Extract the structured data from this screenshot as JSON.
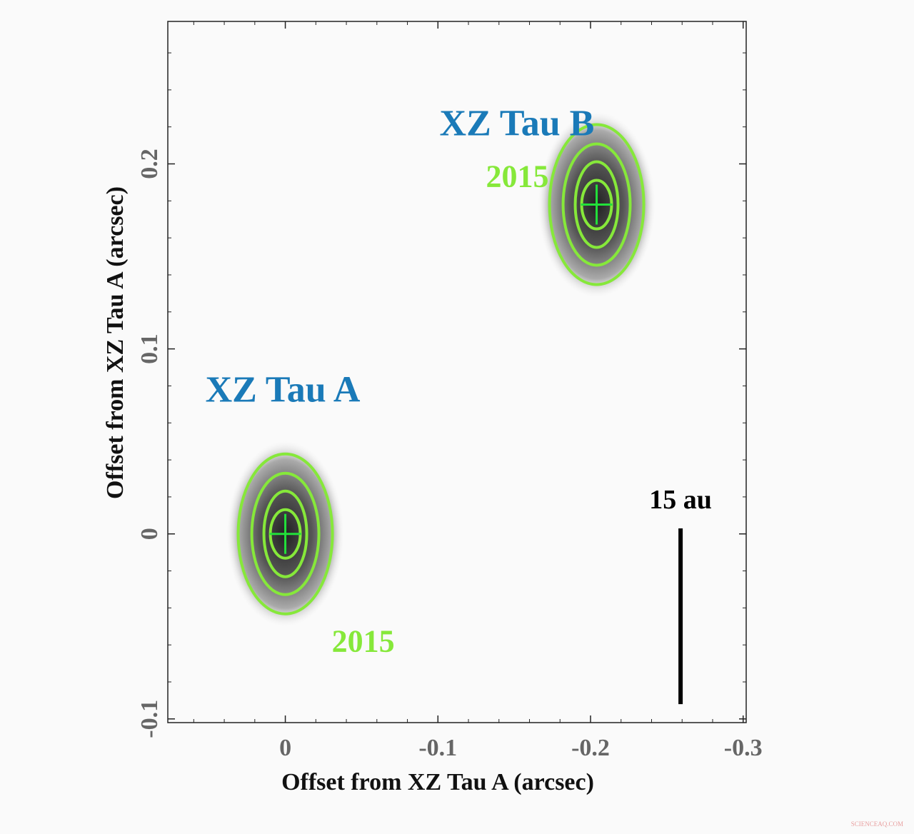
{
  "chart_data": {
    "type": "scatter",
    "x_label": "Offset from XZ Tau A  (arcsec)",
    "y_label": "Offset from XZ Tau A  (arcsec)",
    "xlim": [
      0.077,
      -0.302
    ],
    "ylim": [
      -0.102,
      0.277
    ],
    "xticks": [
      0,
      -0.1,
      -0.2,
      -0.3
    ],
    "yticks": [
      -0.1,
      0,
      0.1,
      0.2
    ],
    "xminorticks": [
      0.06,
      0.04,
      0.02,
      -0.02,
      -0.04,
      -0.06,
      -0.08,
      -0.12,
      -0.14,
      -0.16,
      -0.18,
      -0.22,
      -0.24,
      -0.26,
      -0.28
    ],
    "yminorticks": [
      -0.08,
      -0.06,
      -0.04,
      -0.02,
      0.02,
      0.04,
      0.06,
      0.08,
      0.12,
      0.14,
      0.16,
      0.18,
      0.22,
      0.24,
      0.26
    ],
    "series": [
      {
        "name": "XZ Tau A",
        "color": "#1a7ab8",
        "epoch": "2015",
        "x": [
          0
        ],
        "values": [
          0
        ]
      },
      {
        "name": "XZ Tau B",
        "color": "#1a7ab8",
        "epoch": "2015",
        "x": [
          -0.204
        ],
        "values": [
          0.178
        ]
      }
    ],
    "contour_color": "#86e83a",
    "marker_color": "#22e03a",
    "scale_bar": {
      "label": "15 au",
      "x": -0.259,
      "y_start": 0.003,
      "y_end": -0.092
    },
    "watermark": "SCIENCEAQ.COM"
  }
}
